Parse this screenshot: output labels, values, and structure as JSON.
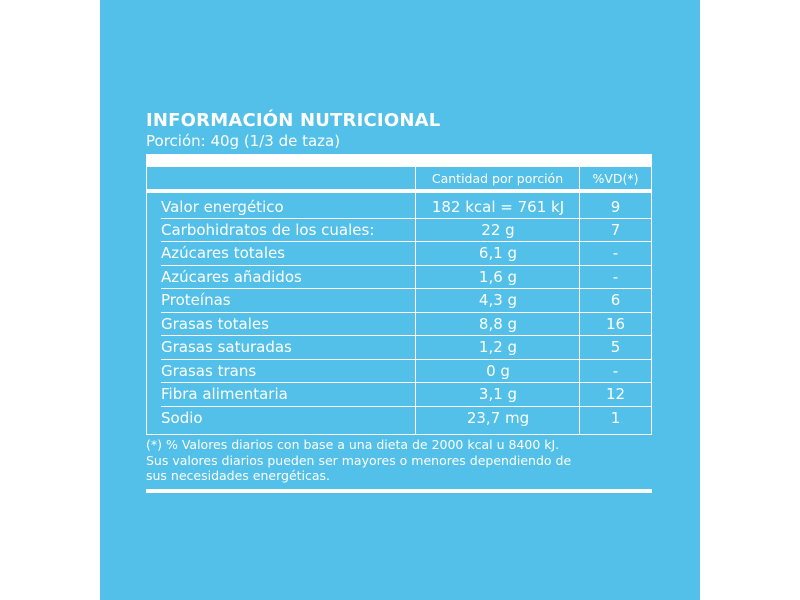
{
  "title": "INFORMACIÓN NUTRICIONAL",
  "serving": "Porción: 40g (1/3 de taza)",
  "headers": {
    "amount": "Cantidad por porción",
    "dv": "%VD(*)"
  },
  "rows": [
    {
      "name": "Valor energético",
      "amount": "182 kcal = 761 kJ",
      "dv": "9"
    },
    {
      "name": "Carbohidratos de los cuales:",
      "amount": "22 g",
      "dv": "7"
    },
    {
      "name": "Azúcares totales",
      "amount": "6,1 g",
      "dv": "-"
    },
    {
      "name": "Azúcares añadidos",
      "amount": "1,6 g",
      "dv": "-"
    },
    {
      "name": "Proteínas",
      "amount": "4,3 g",
      "dv": "6"
    },
    {
      "name": "Grasas totales",
      "amount": "8,8 g",
      "dv": "16"
    },
    {
      "name": "Grasas saturadas",
      "amount": "1,2 g",
      "dv": "5"
    },
    {
      "name": "Grasas trans",
      "amount": "0 g",
      "dv": "-"
    },
    {
      "name": "Fibra alimentaria",
      "amount": "3,1 g",
      "dv": "12"
    },
    {
      "name": "Sodio",
      "amount": "23,7 mg",
      "dv": "1"
    }
  ],
  "footnote": [
    "(*) % Valores diarios con base a una dieta de 2000 kcal u 8400 kJ.",
    "Sus valores diarios pueden ser mayores o menores dependiendo de",
    "sus necesidades energéticas."
  ],
  "colors": {
    "background": "#52c0e8",
    "text": "#ffffff"
  }
}
